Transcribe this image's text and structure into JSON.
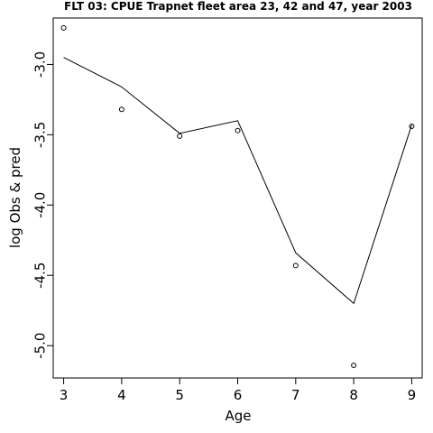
{
  "chart_data": {
    "type": "line",
    "title": "FLT 03: CPUE Trapnet fleet area 23, 42 and 47, year 2003",
    "xlabel": "Age",
    "ylabel": "log Obs & pred",
    "xlim": [
      2.82,
      9.18
    ],
    "ylim": [
      -5.23,
      -2.67
    ],
    "x_ticks": [
      3,
      4,
      5,
      6,
      7,
      8,
      9
    ],
    "y_ticks": [
      -3.0,
      -3.5,
      -4.0,
      -4.5,
      -5.0
    ],
    "x_tick_labels": [
      "3",
      "4",
      "5",
      "6",
      "7",
      "8",
      "9"
    ],
    "y_tick_labels": [
      "-3.0",
      "-3.5",
      "-4.0",
      "-4.5",
      "-5.0"
    ],
    "series": [
      {
        "mark": "line",
        "x": [
          3,
          4,
          5,
          6,
          7,
          8,
          9
        ],
        "y": [
          -2.95,
          -3.16,
          -3.49,
          -3.4,
          -4.34,
          -4.7,
          -3.43
        ]
      },
      {
        "mark": "points",
        "x": [
          3,
          4,
          5,
          6,
          7,
          8,
          9
        ],
        "y": [
          -2.74,
          -3.32,
          -3.51,
          -3.47,
          -4.43,
          -5.14,
          -3.44
        ]
      }
    ],
    "grid": false,
    "legend": "none"
  }
}
